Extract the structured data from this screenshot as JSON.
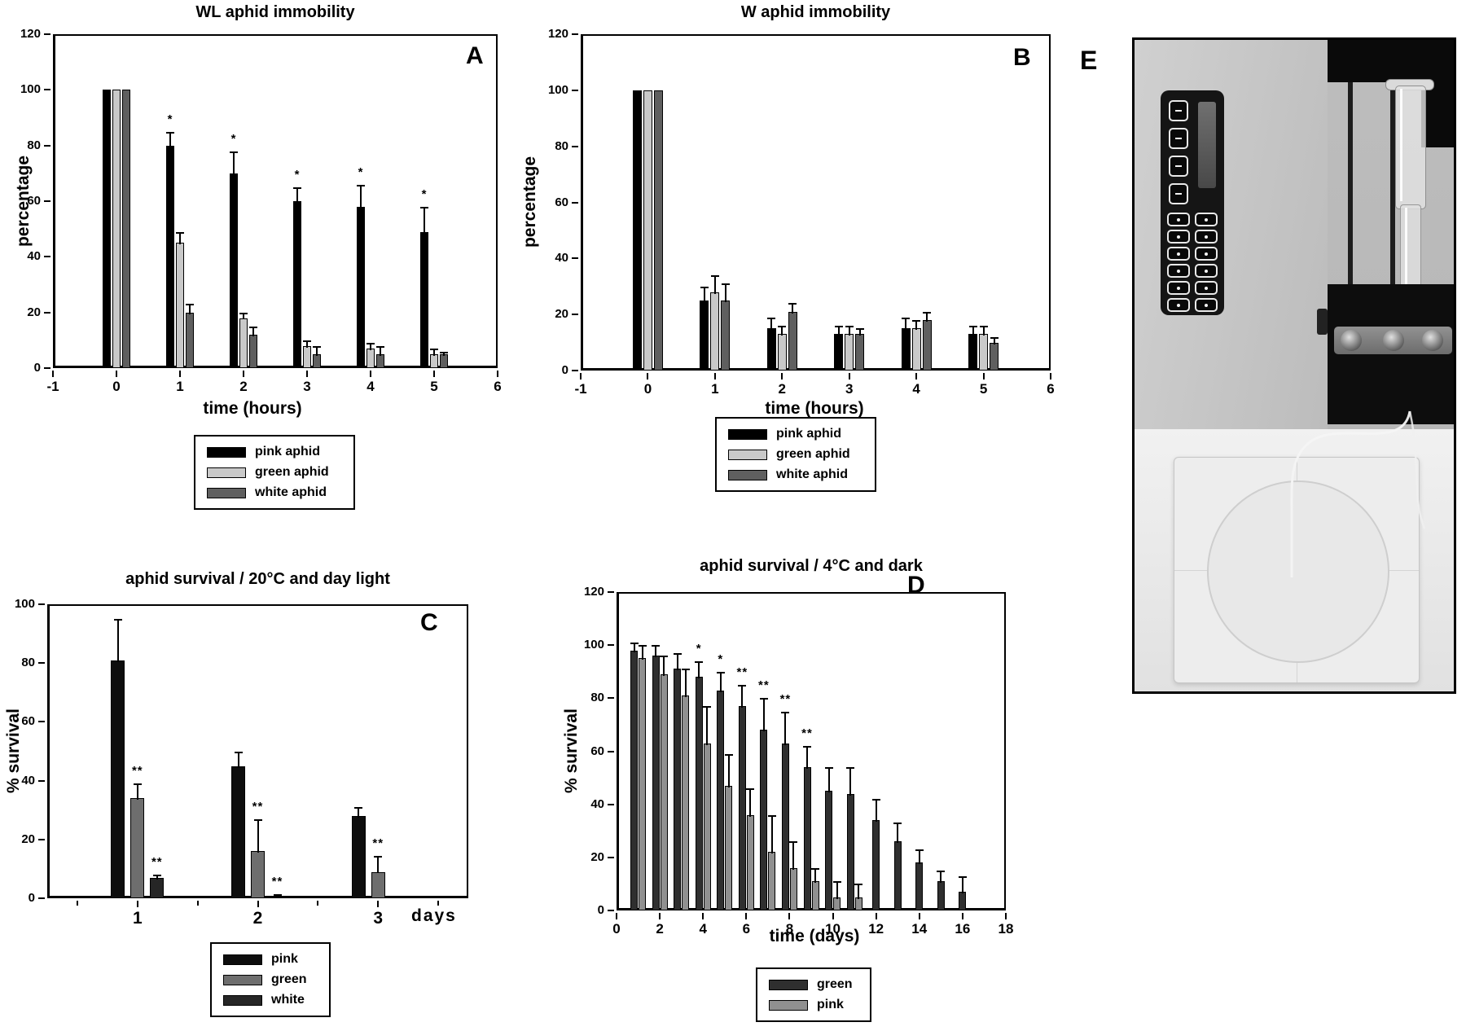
{
  "figure": {
    "panel_letters": [
      "A",
      "B",
      "C",
      "D",
      "E"
    ]
  },
  "chart_data": [
    {
      "type": "bar",
      "panel_label": "A",
      "title": "WL aphid immobility",
      "xlabel": "time (hours)",
      "ylabel": "percentage",
      "ylim": [
        0,
        120
      ],
      "yticks": [
        0,
        20,
        40,
        60,
        80,
        100,
        120
      ],
      "xlim": [
        -1,
        6
      ],
      "xticks": [
        -1,
        0,
        1,
        2,
        3,
        4,
        5,
        6
      ],
      "x": [
        0,
        1,
        2,
        3,
        4,
        5
      ],
      "grid": false,
      "legend_position": "below",
      "series": [
        {
          "name": "pink aphid",
          "color": "#000000",
          "values": [
            100,
            80,
            70,
            60,
            58,
            49
          ],
          "errors": [
            0,
            5,
            8,
            5,
            8,
            9
          ],
          "annotations": [
            "",
            "*",
            "*",
            "*",
            "*",
            "*"
          ]
        },
        {
          "name": "green aphid",
          "color": "#c9c9c9",
          "values": [
            100,
            45,
            18,
            8,
            7,
            5
          ],
          "errors": [
            0,
            4,
            2,
            2,
            2,
            2
          ],
          "annotations": [
            "",
            "",
            "",
            "",
            "",
            ""
          ]
        },
        {
          "name": "white aphid",
          "color": "#5f5f5f",
          "values": [
            100,
            20,
            12,
            5,
            5,
            5
          ],
          "errors": [
            0,
            3,
            3,
            3,
            3,
            1
          ],
          "annotations": [
            "",
            "",
            "",
            "",
            "",
            ""
          ]
        }
      ]
    },
    {
      "type": "bar",
      "panel_label": "B",
      "title": "W aphid immobility",
      "xlabel": "time (hours)",
      "ylabel": "percentage",
      "ylim": [
        0,
        120
      ],
      "yticks": [
        0,
        20,
        40,
        60,
        80,
        100,
        120
      ],
      "xlim": [
        -1,
        6
      ],
      "xticks": [
        -1,
        0,
        1,
        2,
        3,
        4,
        5,
        6
      ],
      "x": [
        0,
        1,
        2,
        3,
        4,
        5
      ],
      "grid": false,
      "legend_position": "below",
      "series": [
        {
          "name": "pink aphid",
          "color": "#000000",
          "values": [
            100,
            25,
            15,
            13,
            15,
            13
          ],
          "errors": [
            0,
            5,
            4,
            3,
            4,
            3
          ],
          "annotations": [
            "",
            "",
            "",
            "",
            "",
            ""
          ]
        },
        {
          "name": "green aphid",
          "color": "#c9c9c9",
          "values": [
            100,
            28,
            13,
            13,
            15,
            13
          ],
          "errors": [
            0,
            6,
            3,
            3,
            3,
            3
          ],
          "annotations": [
            "",
            "",
            "",
            "",
            "",
            ""
          ]
        },
        {
          "name": "white aphid",
          "color": "#5f5f5f",
          "values": [
            100,
            25,
            21,
            13,
            18,
            10
          ],
          "errors": [
            0,
            6,
            3,
            2,
            3,
            2
          ],
          "annotations": [
            "",
            "",
            "",
            "",
            "",
            ""
          ]
        }
      ]
    },
    {
      "type": "bar",
      "panel_label": "C",
      "title": "aphid survival / 20°C and day light",
      "xlabel": "days",
      "ylabel": "% survival",
      "ylim": [
        0,
        100
      ],
      "yticks": [
        0,
        20,
        40,
        60,
        80,
        100
      ],
      "xlim": [
        0.25,
        3.75
      ],
      "xticks": [
        1,
        2,
        3
      ],
      "minor_xticks": [
        0.5,
        1.5,
        2.5,
        3.5
      ],
      "x": [
        1,
        2,
        3
      ],
      "grid": false,
      "legend_position": "below",
      "series": [
        {
          "name": "pink",
          "color": "#0d0d0d",
          "values": [
            81,
            45,
            28
          ],
          "errors": [
            14,
            5,
            3
          ],
          "annotations": [
            "",
            "",
            ""
          ]
        },
        {
          "name": "green",
          "color": "#6e6e6e",
          "values": [
            34,
            16,
            9
          ],
          "errors": [
            5,
            11,
            5.5
          ],
          "annotations": [
            "**",
            "**",
            "**"
          ]
        },
        {
          "name": "white",
          "color": "#262626",
          "values": [
            7,
            0.5,
            0
          ],
          "errors": [
            1,
            1,
            0
          ],
          "annotations": [
            "**",
            "**",
            ""
          ]
        }
      ]
    },
    {
      "type": "bar",
      "panel_label": "D",
      "title": "aphid survival / 4°C and dark",
      "xlabel": "time (days)",
      "ylabel": "% survival",
      "ylim": [
        0,
        120
      ],
      "yticks": [
        0,
        20,
        40,
        60,
        80,
        100,
        120
      ],
      "xlim": [
        0,
        18
      ],
      "xticks": [
        0,
        2,
        4,
        6,
        8,
        10,
        12,
        14,
        16,
        18
      ],
      "x": [
        1,
        2,
        3,
        4,
        5,
        6,
        7,
        8,
        9,
        10,
        11,
        12,
        13,
        14,
        15,
        16
      ],
      "grid": false,
      "legend_position": "below",
      "series": [
        {
          "name": "green",
          "color": "#2f2f2f",
          "values": [
            98,
            96,
            91,
            88,
            83,
            77,
            68,
            63,
            54,
            45,
            44,
            34,
            26,
            18,
            11,
            7
          ],
          "errors": [
            3,
            4,
            6,
            6,
            7,
            8,
            12,
            12,
            8,
            9,
            10,
            8,
            7,
            5,
            4,
            6
          ],
          "annotations": [
            "",
            "",
            "",
            "*",
            "*",
            "**",
            "**",
            "**",
            "**",
            "",
            "",
            "",
            "",
            "",
            "",
            ""
          ]
        },
        {
          "name": "pink",
          "color": "#909090",
          "values": [
            95,
            89,
            81,
            63,
            47,
            36,
            22,
            16,
            11,
            5,
            5
          ],
          "errors": [
            5,
            7,
            10,
            14,
            12,
            10,
            14,
            10,
            5,
            6,
            5
          ],
          "annotations": [
            "",
            "",
            "",
            "",
            "",
            "",
            "",
            "",
            "",
            "",
            ""
          ]
        }
      ]
    }
  ],
  "photo": {
    "panel_label": "E"
  }
}
